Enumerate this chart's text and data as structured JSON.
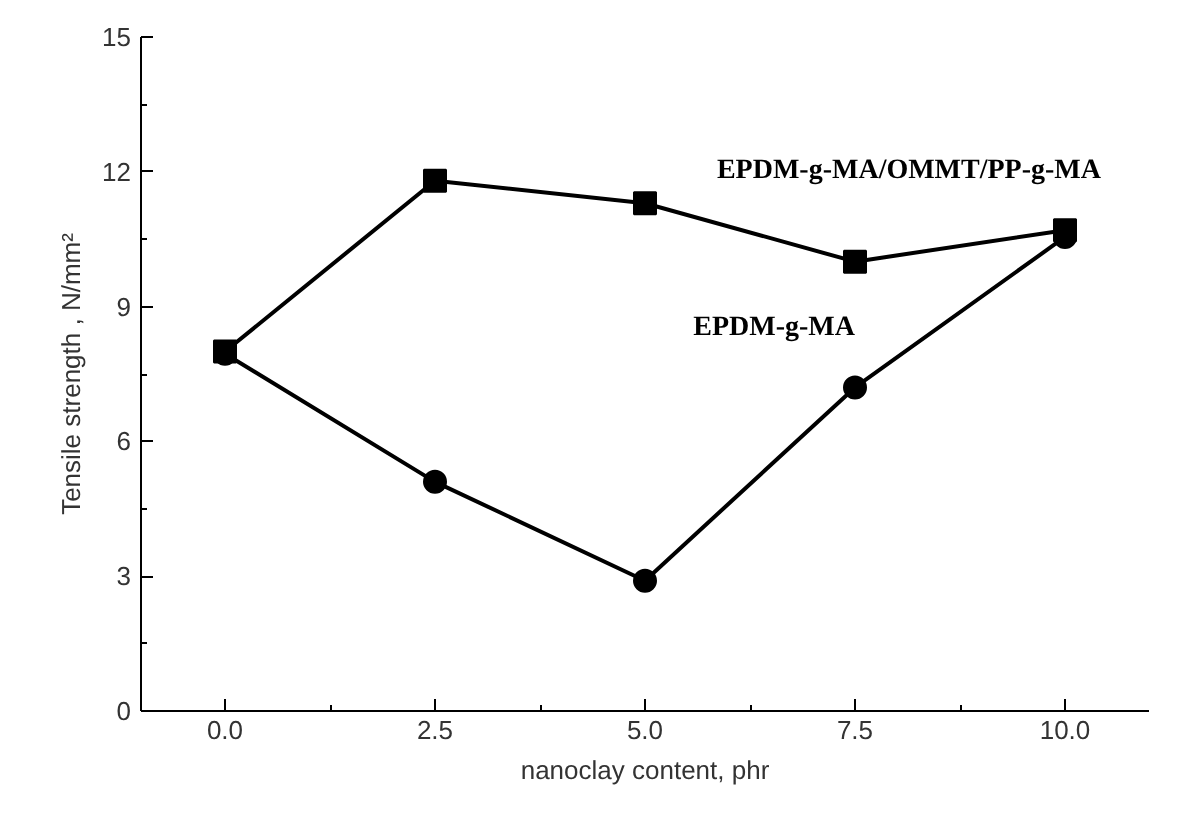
{
  "chart_data": {
    "type": "line",
    "xlabel": "nanoclay content, phr",
    "ylabel": "Tensile strength , N/mm²",
    "x": [
      0.0,
      2.5,
      5.0,
      7.5,
      10.0
    ],
    "series": [
      {
        "name": "EPDM-g-MA/OMMT/PP-g-MA",
        "color": "#000000",
        "marker": "square",
        "values": [
          8.0,
          11.8,
          11.3,
          10.0,
          10.7
        ]
      },
      {
        "name": "EPDM-g-MA",
        "color": "#000000",
        "marker": "circle",
        "values": [
          7.95,
          5.1,
          2.9,
          7.2,
          10.55
        ]
      }
    ],
    "xlim": [
      -1,
      11
    ],
    "ylim": [
      0,
      15
    ],
    "xticks": [
      {
        "value": 0,
        "label": "0.0"
      },
      {
        "value": 2.5,
        "label": "2.5"
      },
      {
        "value": 5,
        "label": "5.0"
      },
      {
        "value": 7.5,
        "label": "7.5"
      },
      {
        "value": 10,
        "label": "10.0"
      }
    ],
    "yticks": [
      0,
      3,
      6,
      9,
      12,
      15
    ],
    "grid": false,
    "line_style": "solid"
  }
}
